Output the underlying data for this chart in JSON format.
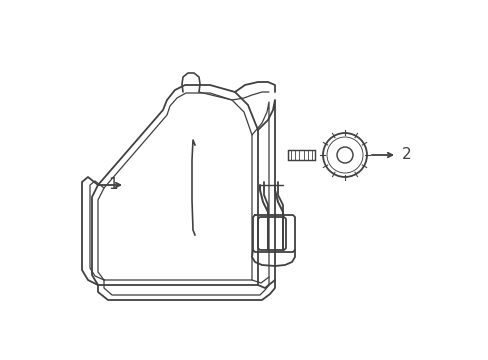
{
  "background_color": "#ffffff",
  "line_color": "#404040",
  "line_width": 1.3,
  "label1_text": "1",
  "label2_text": "2",
  "figsize": [
    4.89,
    3.6
  ],
  "dpi": 100
}
